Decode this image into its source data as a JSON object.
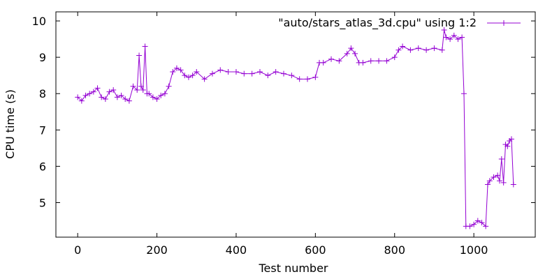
{
  "chart_data": {
    "type": "line",
    "marker": "plus",
    "title": "",
    "xlabel": "Test number",
    "ylabel": "CPU time (s)",
    "xlim": [
      -55,
      1155
    ],
    "ylim": [
      4.05,
      10.25
    ],
    "xticks": [
      0,
      200,
      400,
      600,
      800,
      1000
    ],
    "xtick_labels": [
      "0",
      "200",
      "400",
      "600",
      "800",
      "1000"
    ],
    "yticks": [
      5,
      6,
      7,
      8,
      9,
      10
    ],
    "ytick_labels": [
      "5",
      "6",
      "7",
      "8",
      "9",
      "10"
    ],
    "grid": false,
    "legend_position": "top-right",
    "color": "#9400d3",
    "series": [
      {
        "name": "\"auto/stars_atlas_3d.cpu\" using 1:2",
        "x": [
          0,
          10,
          20,
          30,
          40,
          50,
          60,
          70,
          80,
          90,
          100,
          110,
          120,
          130,
          140,
          150,
          155,
          160,
          165,
          170,
          175,
          180,
          190,
          200,
          210,
          220,
          230,
          240,
          250,
          260,
          270,
          280,
          290,
          300,
          320,
          340,
          360,
          380,
          400,
          420,
          440,
          460,
          480,
          500,
          520,
          540,
          560,
          580,
          600,
          610,
          620,
          640,
          660,
          680,
          690,
          700,
          710,
          720,
          740,
          760,
          780,
          800,
          810,
          820,
          840,
          860,
          880,
          900,
          920,
          925,
          930,
          940,
          950,
          960,
          970,
          975,
          980,
          990,
          1000,
          1010,
          1020,
          1030,
          1035,
          1040,
          1050,
          1060,
          1065,
          1070,
          1075,
          1080,
          1085,
          1090,
          1095,
          1100
        ],
        "y": [
          7.9,
          7.8,
          7.95,
          8.0,
          8.05,
          8.15,
          7.9,
          7.85,
          8.05,
          8.1,
          7.9,
          7.95,
          7.85,
          7.8,
          8.2,
          8.1,
          9.05,
          8.2,
          8.1,
          9.3,
          8.0,
          8.0,
          7.9,
          7.85,
          7.95,
          8.0,
          8.2,
          8.6,
          8.7,
          8.65,
          8.5,
          8.45,
          8.5,
          8.6,
          8.4,
          8.55,
          8.65,
          8.6,
          8.6,
          8.55,
          8.55,
          8.6,
          8.5,
          8.6,
          8.55,
          8.5,
          8.4,
          8.4,
          8.45,
          8.85,
          8.85,
          8.95,
          8.9,
          9.1,
          9.25,
          9.1,
          8.85,
          8.85,
          8.9,
          8.9,
          8.9,
          9.0,
          9.2,
          9.3,
          9.2,
          9.25,
          9.2,
          9.25,
          9.2,
          9.75,
          9.55,
          9.5,
          9.6,
          9.5,
          9.55,
          8.0,
          4.35,
          4.35,
          4.4,
          4.5,
          4.45,
          4.35,
          5.5,
          5.6,
          5.7,
          5.75,
          5.6,
          6.2,
          5.55,
          6.6,
          6.55,
          6.7,
          6.75,
          5.5
        ]
      }
    ]
  }
}
